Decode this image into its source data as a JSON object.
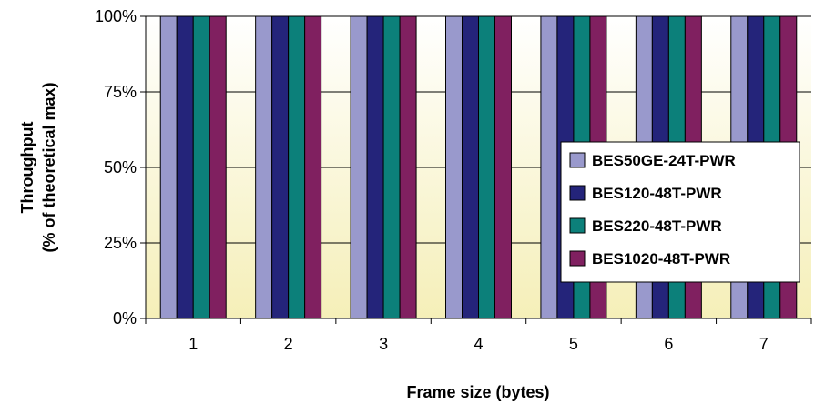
{
  "chart_data": {
    "type": "bar",
    "title": "",
    "xlabel": "Frame size (bytes)",
    "ylabel_lines": [
      "Throughput",
      "(% of theoretical max)"
    ],
    "categories": [
      "1",
      "2",
      "3",
      "4",
      "5",
      "6",
      "7"
    ],
    "ylim": [
      0,
      100
    ],
    "yticks": [
      0,
      25,
      50,
      75,
      100
    ],
    "ytick_labels": [
      "0%",
      "25%",
      "50%",
      "75%",
      "100%"
    ],
    "grid": true,
    "legend_position": "right",
    "series": [
      {
        "name": "BES50GE-24T-PWR",
        "color": "#9999cc",
        "values": [
          100,
          100,
          100,
          100,
          100,
          100,
          100
        ]
      },
      {
        "name": "BES120-48T-PWR",
        "color": "#24247a",
        "values": [
          100,
          100,
          100,
          100,
          100,
          100,
          100
        ]
      },
      {
        "name": "BES220-48T-PWR",
        "color": "#0c807a",
        "values": [
          100,
          100,
          100,
          100,
          100,
          100,
          100
        ]
      },
      {
        "name": "BES1020-48T-PWR",
        "color": "#802060",
        "values": [
          100,
          100,
          100,
          100,
          100,
          100,
          100
        ]
      }
    ],
    "background_gradient": [
      "#ffffff",
      "#f5efb8"
    ]
  }
}
